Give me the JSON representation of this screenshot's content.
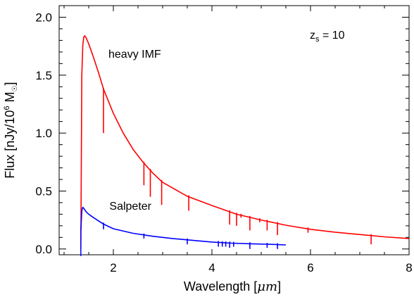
{
  "chart_data": {
    "type": "line",
    "xlabel_prefix": "Wavelength [",
    "xlabel_unit": "μm",
    "xlabel_suffix": "]",
    "ylabel_prefix": "Flux [nJy/10",
    "ylabel_exp": "6",
    "ylabel_suffix": " M",
    "ylabel_sun": "☉",
    "ylabel_close": "]",
    "xlim": [
      0.9,
      8.0
    ],
    "ylim": [
      -0.05,
      2.1
    ],
    "x_ticks": [
      2,
      4,
      6,
      8
    ],
    "y_ticks": [
      0.0,
      0.5,
      1.0,
      1.5,
      2.0
    ],
    "x_tick_labels": [
      "2",
      "4",
      "6",
      "8"
    ],
    "y_tick_labels": [
      "0.0",
      "0.5",
      "1.0",
      "1.5",
      "2.0"
    ],
    "annotation": {
      "z_prefix": "z",
      "z_sub": "s",
      "z_value": " = 10"
    },
    "series": [
      {
        "label": "heavy IMF",
        "color": "#ff0000",
        "cutoff": 1.34,
        "x": [
          1.34,
          1.36,
          1.38,
          1.4,
          1.42,
          1.45,
          1.5,
          1.55,
          1.6,
          1.7,
          1.8,
          2.0,
          2.2,
          2.4,
          2.6,
          2.8,
          3.0,
          3.5,
          4.0,
          4.5,
          5.0,
          5.5,
          6.0,
          6.5,
          7.0,
          7.5,
          8.0
        ],
        "y": [
          0.0,
          1.5,
          1.76,
          1.83,
          1.84,
          1.82,
          1.77,
          1.71,
          1.65,
          1.52,
          1.38,
          1.17,
          1.0,
          0.86,
          0.75,
          0.655,
          0.575,
          0.455,
          0.375,
          0.3,
          0.25,
          0.205,
          0.17,
          0.145,
          0.125,
          0.105,
          0.09
        ],
        "absorption": [
          [
            1.8,
            1.0
          ],
          [
            2.62,
            0.55
          ],
          [
            2.75,
            0.45
          ],
          [
            2.98,
            0.38
          ],
          [
            3.53,
            0.33
          ],
          [
            4.36,
            0.21
          ],
          [
            4.5,
            0.2
          ],
          [
            4.59,
            0.27
          ],
          [
            4.77,
            0.16
          ],
          [
            4.97,
            0.23
          ],
          [
            5.12,
            0.16
          ],
          [
            5.33,
            0.12
          ],
          [
            5.95,
            0.14
          ],
          [
            7.23,
            0.04
          ]
        ]
      },
      {
        "label": "Salpeter",
        "color": "#0000ff",
        "cutoff": 1.34,
        "x": [
          1.34,
          1.36,
          1.38,
          1.4,
          1.45,
          1.5,
          1.6,
          1.8,
          2.0,
          2.4,
          2.8,
          3.2,
          3.6,
          4.0,
          4.4,
          4.8,
          5.2,
          5.5
        ],
        "y": [
          0.16,
          0.33,
          0.36,
          0.35,
          0.32,
          0.3,
          0.27,
          0.215,
          0.175,
          0.135,
          0.11,
          0.09,
          0.075,
          0.06,
          0.05,
          0.045,
          0.04,
          0.035
        ],
        "absorption": [
          [
            1.8,
            0.17
          ],
          [
            2.62,
            0.09
          ],
          [
            3.5,
            0.04
          ],
          [
            4.13,
            0.02
          ],
          [
            4.21,
            0.02
          ],
          [
            4.28,
            0.02
          ],
          [
            4.36,
            0.01
          ],
          [
            4.44,
            0.02
          ],
          [
            4.77,
            0.0
          ],
          [
            5.12,
            0.01
          ],
          [
            5.33,
            0.0
          ]
        ]
      }
    ]
  }
}
